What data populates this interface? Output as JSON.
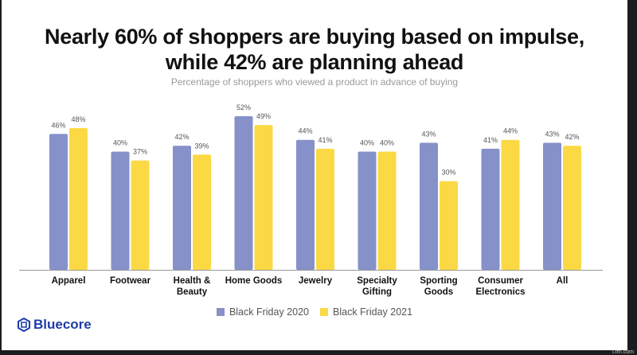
{
  "chart_data": {
    "type": "bar",
    "title": "Nearly 60% of shoppers are buying based on impulse, while 42% are planning ahead",
    "title_lines": [
      "Nearly 60% of shoppers are buying based on impulse,",
      "while 42% are planning ahead"
    ],
    "subtitle": "Percentage of shoppers who viewed a product in advance of buying",
    "categories": [
      [
        "Apparel"
      ],
      [
        "Footwear"
      ],
      [
        "Health &",
        "Beauty"
      ],
      [
        "Home Goods"
      ],
      [
        "Jewelry"
      ],
      [
        "Specialty",
        "Gifting"
      ],
      [
        "Sporting",
        "Goods"
      ],
      [
        "Consumer",
        "Electronics"
      ],
      [
        "All"
      ]
    ],
    "series": [
      {
        "name": "Black Friday 2020",
        "color": "#8591c8",
        "values": [
          46,
          40,
          42,
          52,
          44,
          40,
          43,
          41,
          43
        ]
      },
      {
        "name": "Black Friday 2021",
        "color": "#fbd945",
        "values": [
          48,
          37,
          39,
          49,
          41,
          40,
          30,
          44,
          42
        ]
      }
    ],
    "ylim": [
      0,
      52
    ],
    "grid": false,
    "legend": "bottom-center",
    "data_label_suffix": "%"
  },
  "brand": "Bluecore",
  "watermark": "i.frn.com"
}
